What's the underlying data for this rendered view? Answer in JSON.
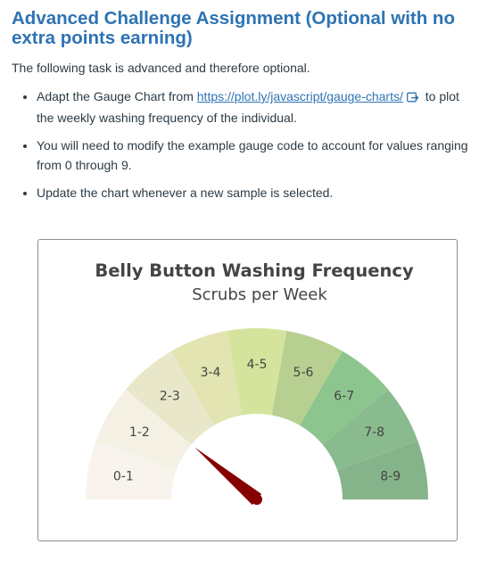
{
  "heading": "Advanced Challenge Assignment (Optional with no extra points earning)",
  "intro": "The following task is advanced and therefore optional.",
  "tasks": {
    "item1_before": "Adapt the Gauge Chart from ",
    "item1_link": "https://plot.ly/javascript/gauge-charts/",
    "item1_after": " to plot the weekly washing frequency of the individual.",
    "item2": "You will need to modify the example gauge code to account for values ranging from 0 through 9.",
    "item3": "Update the chart whenever a new sample is selected."
  },
  "icons": {
    "external_link": "external-link-icon"
  },
  "chart_data": {
    "type": "gauge",
    "title": "Belly Button Washing Frequency",
    "subtitle": "Scrubs per Week",
    "range": [
      0,
      9
    ],
    "segments": [
      {
        "label": "0-1",
        "color": "#f8f3ec"
      },
      {
        "label": "1-2",
        "color": "#f4f1e4"
      },
      {
        "label": "2-3",
        "color": "#e9e7c9"
      },
      {
        "label": "3-4",
        "color": "#e2e4b1"
      },
      {
        "label": "4-5",
        "color": "#d5e49d"
      },
      {
        "label": "5-6",
        "color": "#b7cf90"
      },
      {
        "label": "6-7",
        "color": "#8cc58d"
      },
      {
        "label": "7-8",
        "color": "#8abb8f"
      },
      {
        "label": "8-9",
        "color": "#85b48a"
      }
    ],
    "value": 2,
    "needle_color": "#850000"
  }
}
